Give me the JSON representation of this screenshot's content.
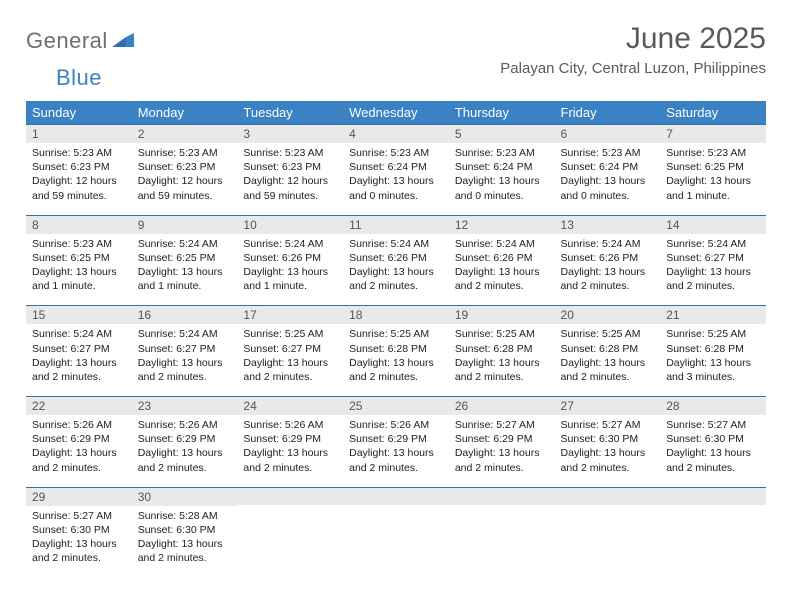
{
  "logo": {
    "text1": "General",
    "text2": "Blue"
  },
  "title": "June 2025",
  "location": "Palayan City, Central Luzon, Philippines",
  "colors": {
    "header_bg": "#3a82c4",
    "header_text": "#ffffff",
    "daynum_bg": "#e9e9e9",
    "daynum_border": "#3a6fa0",
    "title_color": "#5a5a5a",
    "logo_gray": "#6e6e6e",
    "logo_blue": "#3a82c4",
    "body_text": "#222222",
    "page_bg": "#ffffff"
  },
  "typography": {
    "title_fontsize": 30,
    "location_fontsize": 15,
    "weekday_fontsize": 13,
    "daynum_fontsize": 12,
    "body_fontsize": 10.5,
    "font_family": "Arial"
  },
  "layout": {
    "columns": 7,
    "rows": 5
  },
  "weekdays": [
    "Sunday",
    "Monday",
    "Tuesday",
    "Wednesday",
    "Thursday",
    "Friday",
    "Saturday"
  ],
  "weeks": [
    [
      {
        "n": "1",
        "sr": "Sunrise: 5:23 AM",
        "ss": "Sunset: 6:23 PM",
        "d1": "Daylight: 12 hours",
        "d2": "and 59 minutes."
      },
      {
        "n": "2",
        "sr": "Sunrise: 5:23 AM",
        "ss": "Sunset: 6:23 PM",
        "d1": "Daylight: 12 hours",
        "d2": "and 59 minutes."
      },
      {
        "n": "3",
        "sr": "Sunrise: 5:23 AM",
        "ss": "Sunset: 6:23 PM",
        "d1": "Daylight: 12 hours",
        "d2": "and 59 minutes."
      },
      {
        "n": "4",
        "sr": "Sunrise: 5:23 AM",
        "ss": "Sunset: 6:24 PM",
        "d1": "Daylight: 13 hours",
        "d2": "and 0 minutes."
      },
      {
        "n": "5",
        "sr": "Sunrise: 5:23 AM",
        "ss": "Sunset: 6:24 PM",
        "d1": "Daylight: 13 hours",
        "d2": "and 0 minutes."
      },
      {
        "n": "6",
        "sr": "Sunrise: 5:23 AM",
        "ss": "Sunset: 6:24 PM",
        "d1": "Daylight: 13 hours",
        "d2": "and 0 minutes."
      },
      {
        "n": "7",
        "sr": "Sunrise: 5:23 AM",
        "ss": "Sunset: 6:25 PM",
        "d1": "Daylight: 13 hours",
        "d2": "and 1 minute."
      }
    ],
    [
      {
        "n": "8",
        "sr": "Sunrise: 5:23 AM",
        "ss": "Sunset: 6:25 PM",
        "d1": "Daylight: 13 hours",
        "d2": "and 1 minute."
      },
      {
        "n": "9",
        "sr": "Sunrise: 5:24 AM",
        "ss": "Sunset: 6:25 PM",
        "d1": "Daylight: 13 hours",
        "d2": "and 1 minute."
      },
      {
        "n": "10",
        "sr": "Sunrise: 5:24 AM",
        "ss": "Sunset: 6:26 PM",
        "d1": "Daylight: 13 hours",
        "d2": "and 1 minute."
      },
      {
        "n": "11",
        "sr": "Sunrise: 5:24 AM",
        "ss": "Sunset: 6:26 PM",
        "d1": "Daylight: 13 hours",
        "d2": "and 2 minutes."
      },
      {
        "n": "12",
        "sr": "Sunrise: 5:24 AM",
        "ss": "Sunset: 6:26 PM",
        "d1": "Daylight: 13 hours",
        "d2": "and 2 minutes."
      },
      {
        "n": "13",
        "sr": "Sunrise: 5:24 AM",
        "ss": "Sunset: 6:26 PM",
        "d1": "Daylight: 13 hours",
        "d2": "and 2 minutes."
      },
      {
        "n": "14",
        "sr": "Sunrise: 5:24 AM",
        "ss": "Sunset: 6:27 PM",
        "d1": "Daylight: 13 hours",
        "d2": "and 2 minutes."
      }
    ],
    [
      {
        "n": "15",
        "sr": "Sunrise: 5:24 AM",
        "ss": "Sunset: 6:27 PM",
        "d1": "Daylight: 13 hours",
        "d2": "and 2 minutes."
      },
      {
        "n": "16",
        "sr": "Sunrise: 5:24 AM",
        "ss": "Sunset: 6:27 PM",
        "d1": "Daylight: 13 hours",
        "d2": "and 2 minutes."
      },
      {
        "n": "17",
        "sr": "Sunrise: 5:25 AM",
        "ss": "Sunset: 6:27 PM",
        "d1": "Daylight: 13 hours",
        "d2": "and 2 minutes."
      },
      {
        "n": "18",
        "sr": "Sunrise: 5:25 AM",
        "ss": "Sunset: 6:28 PM",
        "d1": "Daylight: 13 hours",
        "d2": "and 2 minutes."
      },
      {
        "n": "19",
        "sr": "Sunrise: 5:25 AM",
        "ss": "Sunset: 6:28 PM",
        "d1": "Daylight: 13 hours",
        "d2": "and 2 minutes."
      },
      {
        "n": "20",
        "sr": "Sunrise: 5:25 AM",
        "ss": "Sunset: 6:28 PM",
        "d1": "Daylight: 13 hours",
        "d2": "and 2 minutes."
      },
      {
        "n": "21",
        "sr": "Sunrise: 5:25 AM",
        "ss": "Sunset: 6:28 PM",
        "d1": "Daylight: 13 hours",
        "d2": "and 3 minutes."
      }
    ],
    [
      {
        "n": "22",
        "sr": "Sunrise: 5:26 AM",
        "ss": "Sunset: 6:29 PM",
        "d1": "Daylight: 13 hours",
        "d2": "and 2 minutes."
      },
      {
        "n": "23",
        "sr": "Sunrise: 5:26 AM",
        "ss": "Sunset: 6:29 PM",
        "d1": "Daylight: 13 hours",
        "d2": "and 2 minutes."
      },
      {
        "n": "24",
        "sr": "Sunrise: 5:26 AM",
        "ss": "Sunset: 6:29 PM",
        "d1": "Daylight: 13 hours",
        "d2": "and 2 minutes."
      },
      {
        "n": "25",
        "sr": "Sunrise: 5:26 AM",
        "ss": "Sunset: 6:29 PM",
        "d1": "Daylight: 13 hours",
        "d2": "and 2 minutes."
      },
      {
        "n": "26",
        "sr": "Sunrise: 5:27 AM",
        "ss": "Sunset: 6:29 PM",
        "d1": "Daylight: 13 hours",
        "d2": "and 2 minutes."
      },
      {
        "n": "27",
        "sr": "Sunrise: 5:27 AM",
        "ss": "Sunset: 6:30 PM",
        "d1": "Daylight: 13 hours",
        "d2": "and 2 minutes."
      },
      {
        "n": "28",
        "sr": "Sunrise: 5:27 AM",
        "ss": "Sunset: 6:30 PM",
        "d1": "Daylight: 13 hours",
        "d2": "and 2 minutes."
      }
    ],
    [
      {
        "n": "29",
        "sr": "Sunrise: 5:27 AM",
        "ss": "Sunset: 6:30 PM",
        "d1": "Daylight: 13 hours",
        "d2": "and 2 minutes."
      },
      {
        "n": "30",
        "sr": "Sunrise: 5:28 AM",
        "ss": "Sunset: 6:30 PM",
        "d1": "Daylight: 13 hours",
        "d2": "and 2 minutes."
      },
      {
        "n": "",
        "sr": "",
        "ss": "",
        "d1": "",
        "d2": ""
      },
      {
        "n": "",
        "sr": "",
        "ss": "",
        "d1": "",
        "d2": ""
      },
      {
        "n": "",
        "sr": "",
        "ss": "",
        "d1": "",
        "d2": ""
      },
      {
        "n": "",
        "sr": "",
        "ss": "",
        "d1": "",
        "d2": ""
      },
      {
        "n": "",
        "sr": "",
        "ss": "",
        "d1": "",
        "d2": ""
      }
    ]
  ]
}
